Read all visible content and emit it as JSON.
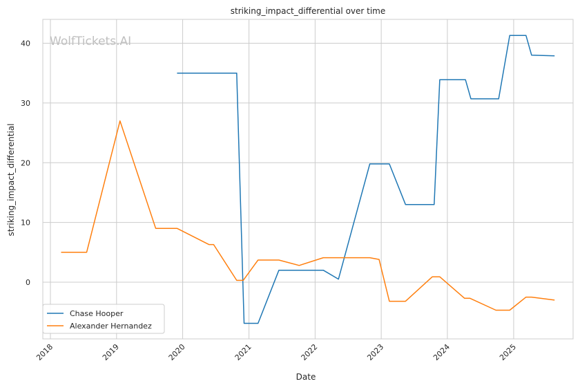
{
  "chart_data": {
    "type": "line",
    "title": "striking_impact_differential over time",
    "xlabel": "Date",
    "ylabel": "striking_impact_differential",
    "watermark": "WolfTickets.AI",
    "grid": true,
    "legend_position": "lower-left",
    "x_ticks": [
      "2018",
      "2019",
      "2020",
      "2021",
      "2022",
      "2023",
      "2024",
      "2025"
    ],
    "y_ticks": [
      "0",
      "10",
      "20",
      "30",
      "40"
    ],
    "ylim": [
      -9.5,
      44
    ],
    "xlim": [
      "2017-11-20",
      "2025-11-25"
    ],
    "series": [
      {
        "name": "Chase Hooper",
        "color": "#1f77b4",
        "points": [
          [
            "2019-12-01",
            35.0
          ],
          [
            "2020-10-25",
            35.0
          ],
          [
            "2020-12-05",
            -6.9
          ],
          [
            "2021-02-20",
            -6.9
          ],
          [
            "2021-06-15",
            2.0
          ],
          [
            "2022-02-15",
            2.0
          ],
          [
            "2022-05-10",
            0.5
          ],
          [
            "2022-10-30",
            19.8
          ],
          [
            "2023-02-15",
            19.8
          ],
          [
            "2023-05-15",
            13.0
          ],
          [
            "2023-10-20",
            13.0
          ],
          [
            "2023-11-20",
            33.9
          ],
          [
            "2024-04-10",
            33.9
          ],
          [
            "2024-05-10",
            30.7
          ],
          [
            "2024-10-10",
            30.7
          ],
          [
            "2024-12-10",
            41.3
          ],
          [
            "2025-03-10",
            41.3
          ],
          [
            "2025-04-10",
            38.0
          ],
          [
            "2025-08-15",
            37.9
          ]
        ]
      },
      {
        "name": "Alexander Hernandez",
        "color": "#ff7f0e",
        "points": [
          [
            "2018-03-01",
            5.0
          ],
          [
            "2018-07-20",
            5.0
          ],
          [
            "2019-01-20",
            27.0
          ],
          [
            "2019-08-05",
            9.0
          ],
          [
            "2019-12-01",
            9.0
          ],
          [
            "2020-05-25",
            6.3
          ],
          [
            "2020-06-20",
            6.3
          ],
          [
            "2020-10-25",
            0.3
          ],
          [
            "2020-11-30",
            0.3
          ],
          [
            "2021-02-20",
            3.7
          ],
          [
            "2021-06-15",
            3.7
          ],
          [
            "2021-10-05",
            2.8
          ],
          [
            "2022-02-15",
            4.1
          ],
          [
            "2022-10-30",
            4.1
          ],
          [
            "2022-12-20",
            3.8
          ],
          [
            "2023-02-15",
            -3.2
          ],
          [
            "2023-05-15",
            -3.2
          ],
          [
            "2023-10-10",
            0.9
          ],
          [
            "2023-11-20",
            0.9
          ],
          [
            "2024-04-05",
            -2.7
          ],
          [
            "2024-05-05",
            -2.7
          ],
          [
            "2024-09-25",
            -4.7
          ],
          [
            "2024-12-10",
            -4.7
          ],
          [
            "2025-03-10",
            -2.5
          ],
          [
            "2025-04-10",
            -2.5
          ],
          [
            "2025-08-15",
            -3.0
          ]
        ]
      }
    ]
  }
}
